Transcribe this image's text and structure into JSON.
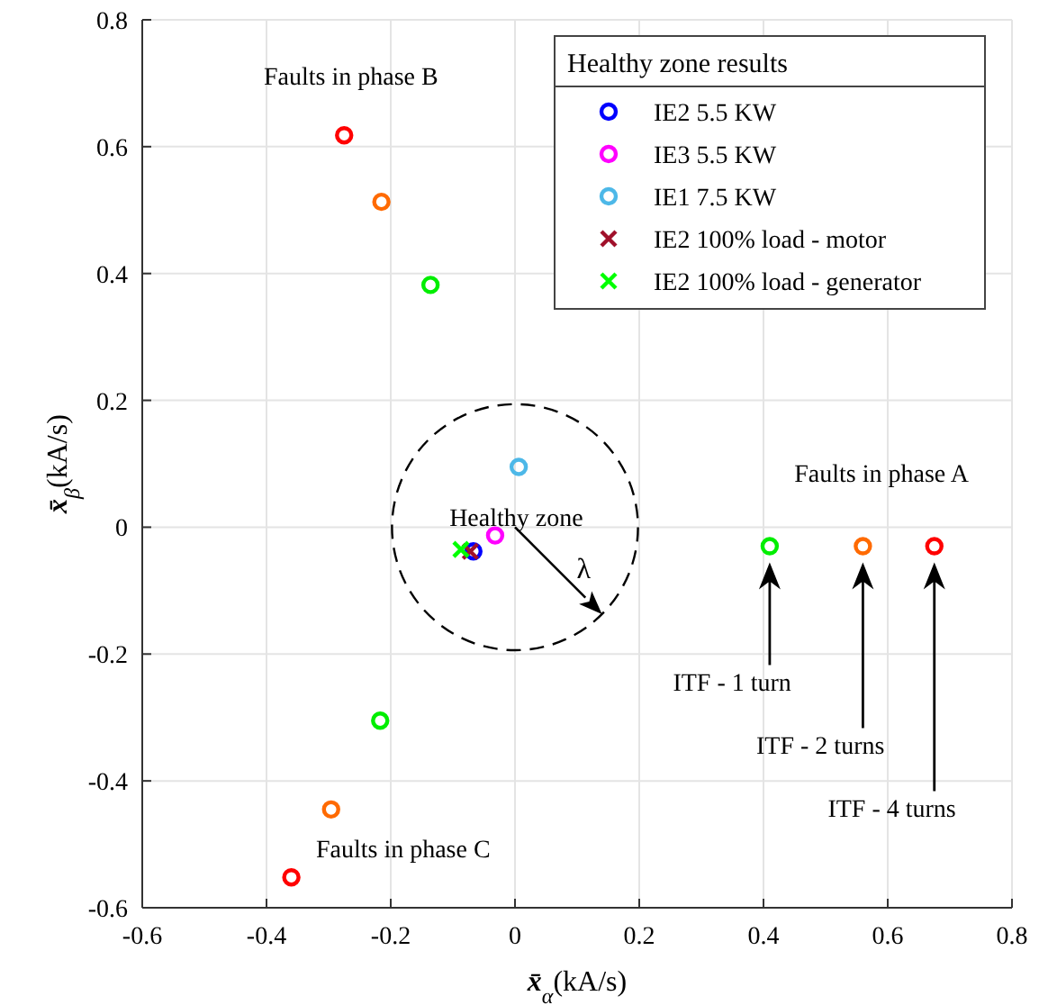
{
  "chart_data": {
    "type": "scatter",
    "xlabel": "x̄$_{α}$(kA/s)",
    "ylabel": "x̄$_{β}$(kA/s)",
    "legend_title": "Healthy zone results",
    "legend": "top right",
    "grid": true,
    "xlim": [
      -0.6,
      0.8
    ],
    "xticks": [
      -0.6,
      -0.4,
      -0.2,
      0,
      0.2,
      0.4,
      0.6,
      0.8
    ],
    "ylim": [
      -0.6,
      0.8
    ],
    "yticks": [
      -0.6,
      -0.4,
      -0.2,
      0,
      0.2,
      0.4,
      0.6,
      0.8
    ],
    "series": [
      {
        "color": "#ff0000",
        "marker": "circle",
        "x": [
          -0.275,
          -0.36,
          0.675
        ],
        "values": [
          0.618,
          -0.552,
          -0.03
        ]
      },
      {
        "color": "#ff6a00",
        "marker": "circle",
        "x": [
          -0.215,
          -0.296,
          0.56
        ],
        "values": [
          0.513,
          -0.445,
          -0.03
        ]
      },
      {
        "color": "#00ee00",
        "marker": "circle",
        "x": [
          -0.136,
          -0.217,
          0.41
        ],
        "values": [
          0.382,
          -0.305,
          -0.03
        ]
      },
      {
        "name": "IE2 5.5 KW",
        "color": "#0000ff",
        "marker": "circle",
        "x": [
          -0.067
        ],
        "values": [
          -0.038
        ]
      },
      {
        "name": "IE3 5.5 KW",
        "color": "#ff00ff",
        "marker": "circle",
        "x": [
          -0.032
        ],
        "values": [
          -0.013
        ]
      },
      {
        "name": "IE1 7.5 KW",
        "color": "#4db8e8",
        "marker": "circle",
        "x": [
          0.006
        ],
        "values": [
          0.095
        ]
      },
      {
        "name": "IE2 100% load - motor",
        "color": "#a0102a",
        "marker": "cross",
        "x": [
          -0.072
        ],
        "values": [
          -0.038
        ]
      },
      {
        "name": "IE2 100% load - generator",
        "color": "#00ff00",
        "marker": "cross",
        "x": [
          -0.087
        ],
        "values": [
          -0.035
        ]
      }
    ],
    "annotations": [
      "Faults in phase B",
      "Faults in phase A",
      "Faults in phase C",
      "Healthy zone",
      "λ",
      "ITF - 1 turn",
      "ITF - 2 turns",
      "ITF - 4 turns"
    ]
  }
}
